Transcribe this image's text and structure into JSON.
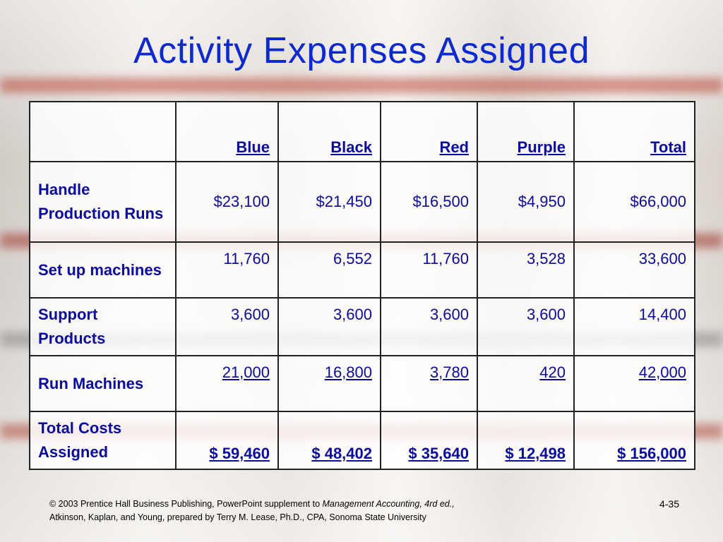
{
  "slide": {
    "title": "Activity Expenses Assigned",
    "page_number": "4-35"
  },
  "table": {
    "corner": "",
    "columns": [
      "Blue",
      "Black",
      "Red",
      "Purple",
      "Total"
    ],
    "rows": [
      {
        "label": "Handle Production Runs",
        "values": [
          "$23,100",
          "$21,450",
          "$16,500",
          "$4,950",
          "$66,000"
        ]
      },
      {
        "label": "Set up machines",
        "values": [
          "11,760",
          "6,552",
          "11,760",
          "3,528",
          "33,600"
        ]
      },
      {
        "label": "Support Products",
        "values": [
          "3,600",
          "3,600",
          "3,600",
          "3,600",
          "14,400"
        ]
      },
      {
        "label": "Run Machines",
        "values": [
          "21,000",
          "16,800",
          "3,780",
          "420",
          "42,000"
        ]
      },
      {
        "label": "Total Costs Assigned",
        "values": [
          "$ 59,460",
          "$ 48,402",
          "$ 35,640",
          "$ 12,498",
          "$ 156,000"
        ]
      }
    ]
  },
  "footer": {
    "line1_prefix": "© 2003 Prentice Hall Business Publishing, PowerPoint supplement to ",
    "line1_italic": "Management Accounting, 4rd ed.,",
    "line2": "Atkinson, Kaplan, and Young, prepared by Terry M. Lease, Ph.D., CPA, Sonoma State University"
  },
  "colors": {
    "title": "#0c2ad0",
    "table_text": "#0a0a9c",
    "border": "#222222"
  }
}
